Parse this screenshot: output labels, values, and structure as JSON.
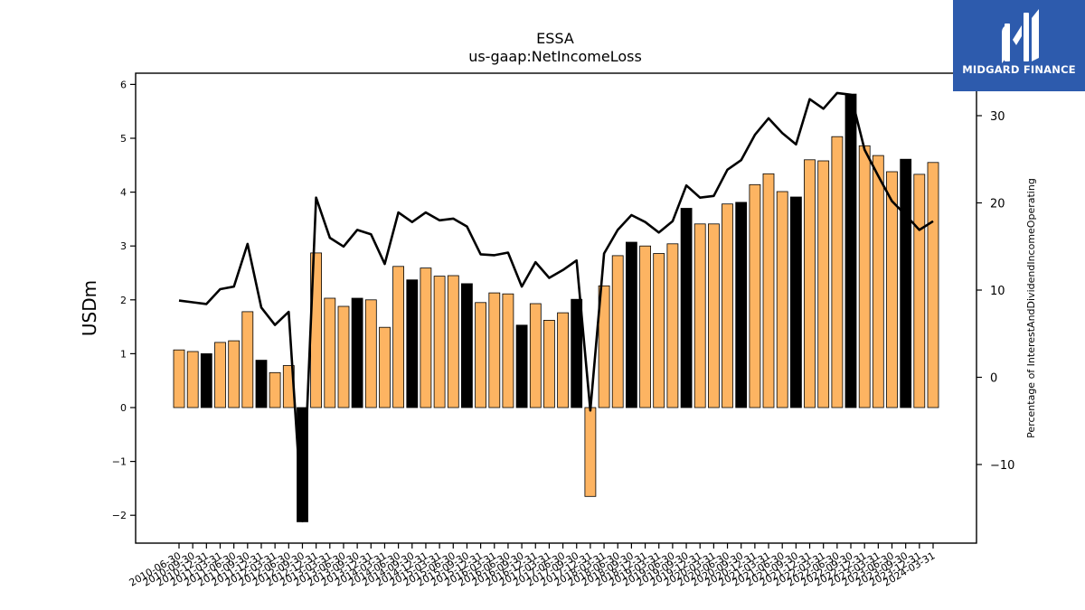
{
  "brand": {
    "name": "MIDGARD FINANCE",
    "logo_icon": "midgard-m-logo-icon",
    "background": "#2d5bad"
  },
  "chart_data": {
    "type": "bar",
    "title": "ESSA",
    "subtitle": "us-gaap:NetIncomeLoss",
    "ylabel": "USDm",
    "ylabel_right": "Percentage of InterestAndDividendIncomeOperating",
    "ylim": [
      -2.5,
      6.2
    ],
    "ylim_right": [
      -19.5,
      35
    ],
    "yticks": [
      -2,
      -1,
      0,
      1,
      2,
      3,
      4,
      5,
      6
    ],
    "yticks_right": [
      -10,
      0,
      10,
      20,
      30
    ],
    "grid": false,
    "bar_colors": {
      "default": "#fdb462",
      "q4": "#000000"
    },
    "line_color": "#000000",
    "categories": [
      "2010-06-30",
      "2010-09-30",
      "2010-12-31",
      "2011-03-31",
      "2011-06-30",
      "2011-09-30",
      "2011-12-31",
      "2012-03-31",
      "2012-06-30",
      "2012-09-30",
      "2012-12-31",
      "2013-03-31",
      "2013-06-30",
      "2013-09-30",
      "2013-12-31",
      "2014-03-31",
      "2014-06-30",
      "2014-09-30",
      "2014-12-31",
      "2015-03-31",
      "2015-06-30",
      "2015-09-30",
      "2015-12-31",
      "2016-03-31",
      "2016-06-30",
      "2016-09-30",
      "2016-12-31",
      "2017-03-31",
      "2017-06-30",
      "2017-09-30",
      "2017-12-31",
      "2018-03-31",
      "2018-06-30",
      "2018-09-30",
      "2018-12-31",
      "2019-03-31",
      "2019-06-30",
      "2019-09-30",
      "2019-12-31",
      "2020-03-31",
      "2020-06-30",
      "2020-09-30",
      "2020-12-31",
      "2021-03-31",
      "2021-06-30",
      "2021-09-30",
      "2021-12-31",
      "2022-03-31",
      "2022-06-30",
      "2022-09-30",
      "2022-12-31",
      "2023-03-31",
      "2023-06-30",
      "2023-09-30",
      "2023-12-31",
      "2024-03-31"
    ],
    "xtick_labels": [
      "2010-06-30",
      "2010-09-30",
      "2010-12-31",
      "2011-03-31",
      "2011-06-30",
      "2011-09-30",
      "2011-12-31",
      "2012-03-31",
      "2012-06-30",
      "2012-09-30",
      "2012-12-31",
      "2013-03-31",
      "2013-06-30",
      "2013-09-30",
      "2013-12-31",
      "2014-03-31",
      "2014-06-30",
      "2014-09-30",
      "2014-12-31",
      "2015-03-31",
      "2015-06-30",
      "2015-09-30",
      "2015-12-31",
      "2016-03-31",
      "2016-06-30",
      "2016-09-30",
      "2016-12-31",
      "2017-03-31",
      "2017-06-30",
      "2017-09-30",
      "2017-12-31",
      "2018-03-31",
      "2018-06-30",
      "2018-09-30",
      "2018-12-31",
      "2019-03-31",
      "2019-06-30",
      "2019-09-30",
      "2019-12-31",
      "2020-03-31",
      "2020-06-30",
      "2020-09-30",
      "2020-12-31",
      "2021-03-31",
      "2021-06-30",
      "2021-09-30",
      "2021-12-31",
      "2022-03-31",
      "2022-06-30",
      "2022-09-30",
      "2022-12-31",
      "2023-03-31",
      "2023-06-30",
      "2023-09-30",
      "2023-12-31",
      "2024-03-31"
    ],
    "q4_flags": [
      0,
      0,
      1,
      0,
      0,
      0,
      1,
      0,
      0,
      1,
      0,
      0,
      0,
      1,
      0,
      0,
      0,
      1,
      0,
      0,
      0,
      1,
      0,
      0,
      0,
      1,
      0,
      0,
      0,
      1,
      0,
      0,
      0,
      1,
      0,
      0,
      0,
      1,
      0,
      0,
      0,
      1,
      0,
      0,
      0,
      1,
      0,
      0,
      0,
      1,
      0,
      0,
      0,
      1,
      0,
      0
    ],
    "series": [
      {
        "kind": "bar",
        "axis": "left",
        "values": [
          1.07,
          1.04,
          1.0,
          1.21,
          1.24,
          1.78,
          0.88,
          0.65,
          0.78,
          -2.12,
          2.87,
          2.03,
          1.88,
          2.03,
          2.0,
          1.49,
          2.62,
          2.37,
          2.59,
          2.44,
          2.45,
          2.3,
          1.95,
          2.13,
          2.11,
          1.53,
          1.93,
          1.62,
          1.76,
          2.01,
          -1.65,
          2.26,
          2.82,
          3.07,
          3.0,
          2.86,
          3.04,
          3.7,
          3.41,
          3.41,
          3.78,
          3.81,
          4.14,
          4.34,
          4.01,
          3.91,
          4.6,
          4.58,
          5.03,
          5.82,
          4.86,
          4.68,
          4.38,
          4.61,
          4.33,
          4.55
        ]
      },
      {
        "kind": "line",
        "axis": "right",
        "values": [
          8.8,
          8.6,
          8.4,
          10.1,
          10.4,
          15.3,
          8.0,
          6.0,
          7.5,
          -16.5,
          20.6,
          16.0,
          15.0,
          16.9,
          16.4,
          13.0,
          18.9,
          17.8,
          18.9,
          18.0,
          18.2,
          17.3,
          14.1,
          14.0,
          14.3,
          10.4,
          13.2,
          11.4,
          12.3,
          13.4,
          -3.8,
          14.2,
          16.9,
          18.6,
          17.8,
          16.6,
          17.9,
          22.0,
          20.6,
          20.8,
          23.8,
          24.9,
          27.8,
          29.7,
          28.0,
          26.7,
          31.9,
          30.8,
          32.6,
          32.4,
          26.1,
          23.1,
          20.2,
          18.6,
          16.9,
          17.9
        ]
      }
    ]
  }
}
